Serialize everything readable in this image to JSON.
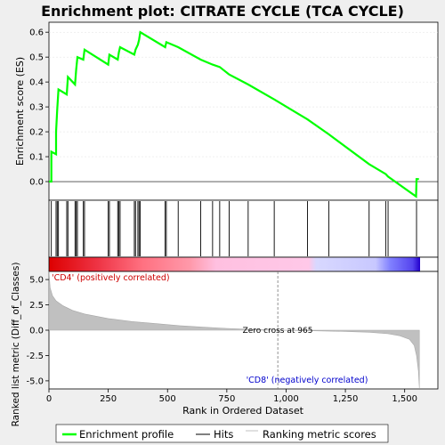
{
  "chart_data": {
    "type": "line",
    "title": "Enrichment plot: CITRATE CYCLE (TCA CYCLE)",
    "xlabel": "Rank in Ordered Dataset",
    "x_ticks": [
      0,
      250,
      500,
      750,
      1000,
      1250,
      1500
    ],
    "x_tick_labels": [
      "0",
      "250",
      "500",
      "750",
      "1,000",
      "1,250",
      "1,500"
    ],
    "xlim": [
      0,
      1640
    ],
    "es_panel": {
      "ylabel": "Enrichment score (ES)",
      "ylim": [
        -0.075,
        0.64
      ],
      "y_ticks": [
        0.0,
        0.1,
        0.2,
        0.3,
        0.4,
        0.5,
        0.6
      ],
      "y_tick_labels": [
        "0.0",
        "0.1",
        "0.2",
        "0.3",
        "0.4",
        "0.5",
        "0.6"
      ],
      "series_color": "#00ff00",
      "points": [
        [
          0,
          0.0
        ],
        [
          10,
          0.0
        ],
        [
          10,
          0.12
        ],
        [
          30,
          0.11
        ],
        [
          30,
          0.2
        ],
        [
          35,
          0.29
        ],
        [
          40,
          0.37
        ],
        [
          75,
          0.35
        ],
        [
          80,
          0.42
        ],
        [
          110,
          0.39
        ],
        [
          115,
          0.45
        ],
        [
          120,
          0.5
        ],
        [
          145,
          0.49
        ],
        [
          150,
          0.53
        ],
        [
          250,
          0.47
        ],
        [
          255,
          0.51
        ],
        [
          290,
          0.49
        ],
        [
          295,
          0.52
        ],
        [
          300,
          0.54
        ],
        [
          360,
          0.51
        ],
        [
          365,
          0.53
        ],
        [
          375,
          0.55
        ],
        [
          380,
          0.57
        ],
        [
          385,
          0.6
        ],
        [
          490,
          0.54
        ],
        [
          495,
          0.56
        ],
        [
          545,
          0.54
        ],
        [
          640,
          0.49
        ],
        [
          690,
          0.47
        ],
        [
          720,
          0.46
        ],
        [
          760,
          0.43
        ],
        [
          840,
          0.39
        ],
        [
          950,
          0.33
        ],
        [
          1090,
          0.25
        ],
        [
          1180,
          0.19
        ],
        [
          1350,
          0.07
        ],
        [
          1420,
          0.03
        ],
        [
          1430,
          0.02
        ],
        [
          1548,
          -0.06
        ],
        [
          1550,
          0.01
        ],
        [
          1560,
          0.01
        ]
      ]
    },
    "hits": {
      "legend_label": "Hits",
      "ranks": [
        10,
        30,
        35,
        40,
        75,
        80,
        110,
        115,
        120,
        145,
        150,
        250,
        255,
        290,
        295,
        300,
        360,
        365,
        375,
        380,
        385,
        490,
        495,
        545,
        640,
        690,
        720,
        760,
        840,
        950,
        1090,
        1180,
        1350,
        1420,
        1430,
        1550
      ]
    },
    "metric_panel": {
      "ylabel": "Ranked list metric (Diff_of_Classes)",
      "ylim": [
        -5.8,
        5.8
      ],
      "y_ticks": [
        5.0,
        2.5,
        0.0,
        -2.5,
        -5.0
      ],
      "y_tick_labels": [
        "5.0",
        "2.5",
        "0.0",
        "-2.5",
        "-5.0"
      ],
      "points": [
        [
          0,
          5.8
        ],
        [
          5,
          4.2
        ],
        [
          15,
          3.4
        ],
        [
          30,
          2.9
        ],
        [
          60,
          2.4
        ],
        [
          100,
          1.95
        ],
        [
          150,
          1.6
        ],
        [
          250,
          1.15
        ],
        [
          350,
          0.85
        ],
        [
          450,
          0.65
        ],
        [
          550,
          0.45
        ],
        [
          650,
          0.3
        ],
        [
          750,
          0.18
        ],
        [
          850,
          0.09
        ],
        [
          965,
          0.0
        ],
        [
          1100,
          -0.05
        ],
        [
          1250,
          -0.12
        ],
        [
          1350,
          -0.2
        ],
        [
          1430,
          -0.35
        ],
        [
          1480,
          -0.55
        ],
        [
          1520,
          -0.9
        ],
        [
          1540,
          -1.5
        ],
        [
          1550,
          -2.5
        ],
        [
          1558,
          -4.0
        ],
        [
          1562,
          -5.7
        ]
      ],
      "zero_cross_label": "Zero cross at 965",
      "zero_cross_rank": 965,
      "positive_label": "'CD4' (positively correlated)",
      "negative_label": "'CD8' (negatively correlated)"
    },
    "legend": {
      "entries": [
        "Enrichment profile",
        "Hits",
        "Ranking metric scores"
      ],
      "placement": "bottom"
    },
    "total_ranks": 1562
  },
  "colors": {
    "profile": "#00ff00",
    "hits": "#000000",
    "metric_fill": "#c0c0c0",
    "positive_label": "#cc0000",
    "negative_label": "#0000cc",
    "heat_stops": [
      "#dd0000",
      "#ee3344",
      "#ff6677",
      "#ff99bb",
      "#ffc0e0",
      "#d0d0ff",
      "#6666ff",
      "#2200cc"
    ]
  }
}
